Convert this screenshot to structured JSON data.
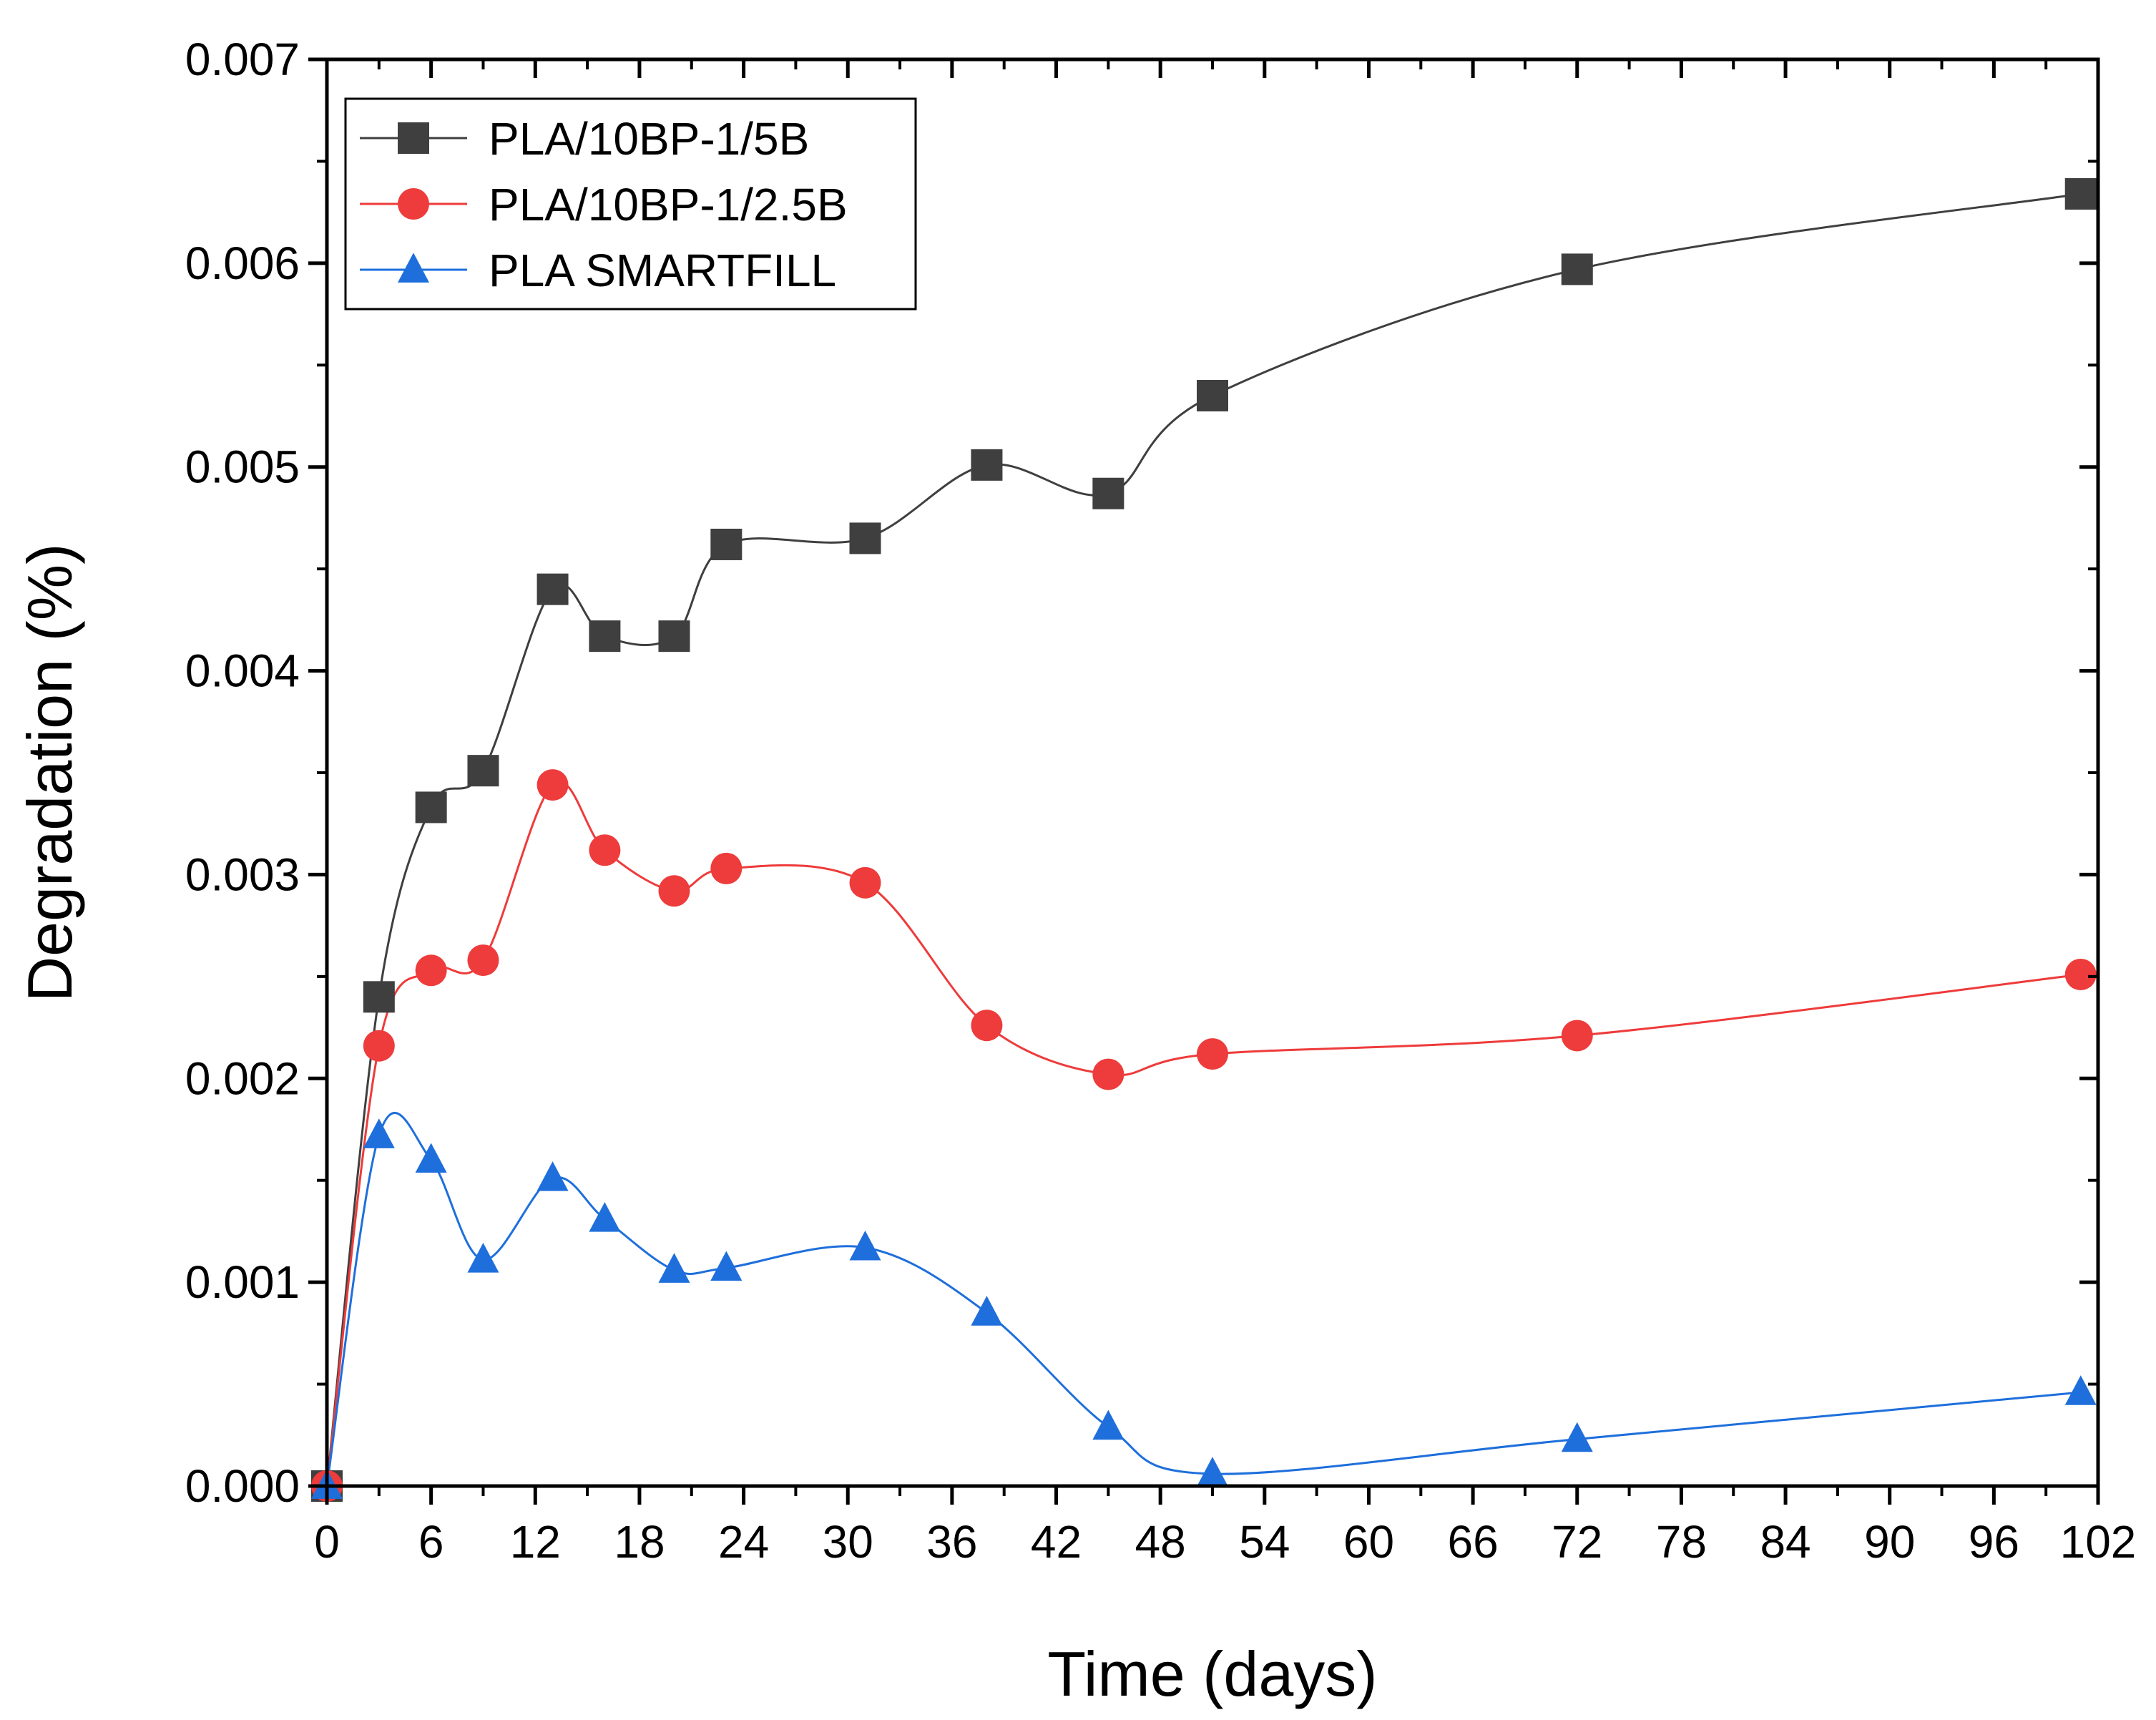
{
  "chart_data": {
    "type": "line",
    "title": "",
    "xlabel": "Time (days)",
    "ylabel": "Degradation (%)",
    "xlim": [
      0,
      102
    ],
    "ylim": [
      0,
      0.007
    ],
    "xticks": [
      0,
      6,
      12,
      18,
      24,
      30,
      36,
      42,
      48,
      54,
      60,
      66,
      72,
      78,
      84,
      90,
      96,
      102
    ],
    "xtick_labels": [
      "0",
      "6",
      "12",
      "18",
      "24",
      "30",
      "36",
      "42",
      "48",
      "54",
      "60",
      "66",
      "72",
      "78",
      "84",
      "90",
      "96",
      "102"
    ],
    "yticks": [
      0,
      0.001,
      0.002,
      0.003,
      0.004,
      0.005,
      0.006,
      0.007
    ],
    "ytick_labels": [
      "0.000",
      "0.001",
      "0.002",
      "0.003",
      "0.004",
      "0.005",
      "0.006",
      "0.007"
    ],
    "grid": false,
    "legend_position": "top-left",
    "series": [
      {
        "name": "PLA/10BP-1/5B",
        "color": "#3f3f3f",
        "marker": "square",
        "x": [
          0,
          3,
          6,
          9,
          13,
          16,
          20,
          23,
          31,
          38,
          45,
          51,
          72,
          101
        ],
        "y": [
          0,
          0.0024,
          0.00333,
          0.00351,
          0.0044,
          0.00417,
          0.00417,
          0.00462,
          0.00465,
          0.00501,
          0.00487,
          0.00535,
          0.00597,
          0.00634
        ]
      },
      {
        "name": "PLA/10BP-1/2.5B",
        "color": "#ee3b3b",
        "marker": "circle",
        "x": [
          0,
          3,
          6,
          9,
          13,
          16,
          20,
          23,
          31,
          38,
          45,
          51,
          72,
          101
        ],
        "y": [
          0,
          0.00216,
          0.00253,
          0.00258,
          0.00344,
          0.00312,
          0.00292,
          0.00303,
          0.00296,
          0.00226,
          0.00202,
          0.00212,
          0.00221,
          0.00251
        ]
      },
      {
        "name": "PLA SMARTFILL",
        "color": "#1e6fdc",
        "marker": "triangle",
        "x": [
          0,
          3,
          6,
          9,
          13,
          16,
          20,
          23,
          31,
          38,
          45,
          51,
          72,
          101
        ],
        "y": [
          0,
          0.00172,
          0.0016,
          0.00111,
          0.00151,
          0.00131,
          0.00106,
          0.00107,
          0.00117,
          0.00085,
          0.00029,
          6e-05,
          0.00023,
          0.00046
        ]
      }
    ]
  }
}
